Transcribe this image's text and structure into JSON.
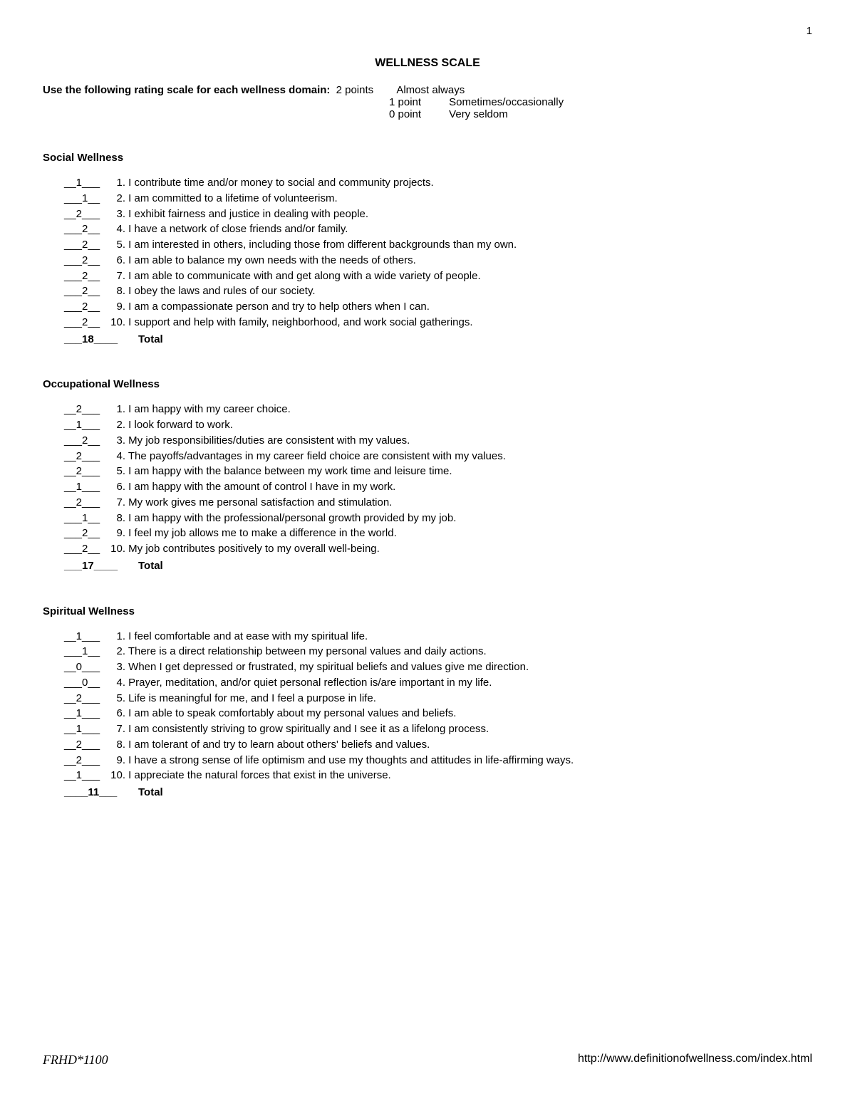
{
  "page_number": "1",
  "title": "WELLNESS SCALE",
  "scale_label": "Use the following rating scale for each wellness domain:",
  "scale": [
    {
      "points": "2 points",
      "desc": "Almost always"
    },
    {
      "points": "1 point",
      "desc": "Sometimes/occasionally"
    },
    {
      "points": "0 point",
      "desc": "Very seldom"
    }
  ],
  "sections": [
    {
      "title": "Social Wellness",
      "items": [
        {
          "score": "__1___",
          "num": "1.",
          "text": "I contribute time and/or money to social and community projects."
        },
        {
          "score": "___1__",
          "num": "2.",
          "text": "I am committed to a lifetime of volunteerism."
        },
        {
          "score": "__2___",
          "num": "3.",
          "text": "I exhibit fairness and justice in dealing with people."
        },
        {
          "score": "___2__",
          "num": "4.",
          "text": "I have a network of close friends and/or family."
        },
        {
          "score": "___2__",
          "num": "5.",
          "text": "I am interested in others, including those from different backgrounds than my own."
        },
        {
          "score": "___2__",
          "num": "6.",
          "text": "I am able to balance my own needs with the needs of others."
        },
        {
          "score": "___2__",
          "num": "7.",
          "text": "I am able to communicate with and get along with a wide variety of people."
        },
        {
          "score": "___2__",
          "num": "8.",
          "text": "I obey the laws and rules of our society."
        },
        {
          "score": "___2__",
          "num": "9.",
          "text": "I am a compassionate person and try to help others when I can."
        },
        {
          "score": "___2__",
          "num": "10.",
          "text": "I support and help with family, neighborhood, and work social gatherings."
        }
      ],
      "total_score": "___18____",
      "total_label": "Total"
    },
    {
      "title": "Occupational Wellness",
      "items": [
        {
          "score": "__2___",
          "num": "1.",
          "text": " I am happy with my career choice."
        },
        {
          "score": "__1___",
          "num": "2.",
          "text": " I look forward to work."
        },
        {
          "score": "___2__",
          "num": "3.",
          "text": " My job responsibilities/duties are consistent with my values."
        },
        {
          "score": "__2___",
          "num": "4.",
          "text": " The payoffs/advantages in my career field choice are consistent with my values."
        },
        {
          "score": "__2___",
          "num": "5.",
          "text": " I am happy with the balance between my work time and leisure time."
        },
        {
          "score": "__1___",
          "num": "6.",
          "text": " I am happy with the amount of control I have in my work."
        },
        {
          "score": "__2___",
          "num": "7.",
          "text": " My work gives me personal satisfaction and stimulation."
        },
        {
          "score": "___1__",
          "num": "8.",
          "text": " I am happy with the professional/personal growth provided by my job."
        },
        {
          "score": "___2__",
          "num": "9.",
          "text": " I feel my job allows me to make a difference in the world."
        },
        {
          "score": "___2__",
          "num": "10.",
          "text": "My job contributes positively to my overall well-being."
        }
      ],
      "total_score": "___17____",
      "total_label": "Total"
    },
    {
      "title": "Spiritual Wellness",
      "items": [
        {
          "score": "__1___",
          "num": "1.",
          "text": "  I feel comfortable and at ease with my spiritual life."
        },
        {
          "score": "___1__",
          "num": "2.",
          "text": " There is a direct relationship between my personal values and daily actions."
        },
        {
          "score": "__0___",
          "num": "3.",
          "text": " When I get depressed or frustrated, my spiritual beliefs and values give me direction."
        },
        {
          "score": "___0__",
          "num": "4.",
          "text": " Prayer, meditation, and/or quiet personal reflection is/are important in my life."
        },
        {
          "score": "__2___",
          "num": "5.",
          "text": " Life is meaningful for me, and I feel a purpose in life."
        },
        {
          "score": "__1___",
          "num": "6.",
          "text": " I am able to speak comfortably about my personal values and beliefs."
        },
        {
          "score": "__1___",
          "num": "7.",
          "text": " I am consistently striving to grow spiritually and I see it as a lifelong process."
        },
        {
          "score": "__2___",
          "num": "8.",
          "text": " I am tolerant of and try to learn about others' beliefs and values."
        },
        {
          "score": "__2___",
          "num": "9.",
          "text": " I have a strong sense of life optimism and use my thoughts and attitudes in life-affirming ways."
        },
        {
          "score": "__1___",
          "num": "10.",
          "text": "I appreciate the natural forces that exist in the universe."
        }
      ],
      "total_score": "____11___",
      "total_label": "Total"
    }
  ],
  "footer_left": "FRHD*1100",
  "footer_right": "http://www.definitionofwellness.com/index.html"
}
